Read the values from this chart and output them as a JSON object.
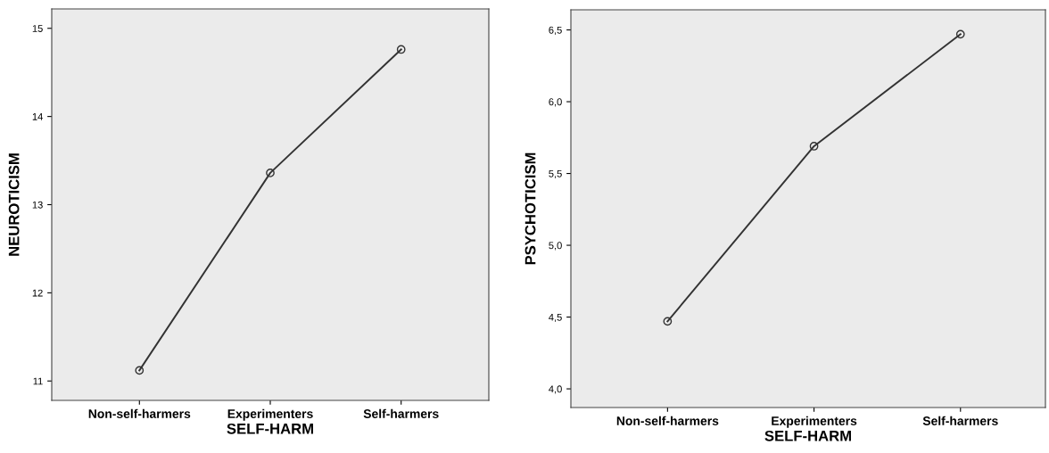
{
  "chart_data": [
    {
      "type": "line",
      "xlabel": "SELF-HARM",
      "ylabel": "NEUROTICISM",
      "categories": [
        "Non-self-harmers",
        "Experimenters",
        "Self-harmers"
      ],
      "series": [
        {
          "color": "#333333",
          "values": [
            11.12,
            13.36,
            14.76
          ]
        }
      ],
      "ylim": [
        10.78,
        15.22
      ],
      "yticks": [
        11,
        12,
        13,
        14,
        15
      ],
      "marker": "circle",
      "line_style": "solid",
      "grid": false,
      "legend": false
    },
    {
      "type": "line",
      "xlabel": "SELF-HARM",
      "ylabel": "PSYCHOTICISM",
      "categories": [
        "Non-self-harmers",
        "Experimenters",
        "Self-harmers"
      ],
      "series": [
        {
          "color": "#333333",
          "values": [
            4.47,
            5.69,
            6.47
          ]
        }
      ],
      "ylim": [
        3.87,
        6.64
      ],
      "yticks": [
        {
          "value": 4.0,
          "label": "4,0"
        },
        {
          "value": 4.5,
          "label": "4,5"
        },
        {
          "value": 5.0,
          "label": "5,0"
        },
        {
          "value": 5.5,
          "label": "5,5"
        },
        {
          "value": 6.0,
          "label": "6,0"
        },
        {
          "value": 6.5,
          "label": "6,5"
        }
      ],
      "marker": "circle",
      "line_style": "solid",
      "grid": false,
      "legend": false
    }
  ]
}
